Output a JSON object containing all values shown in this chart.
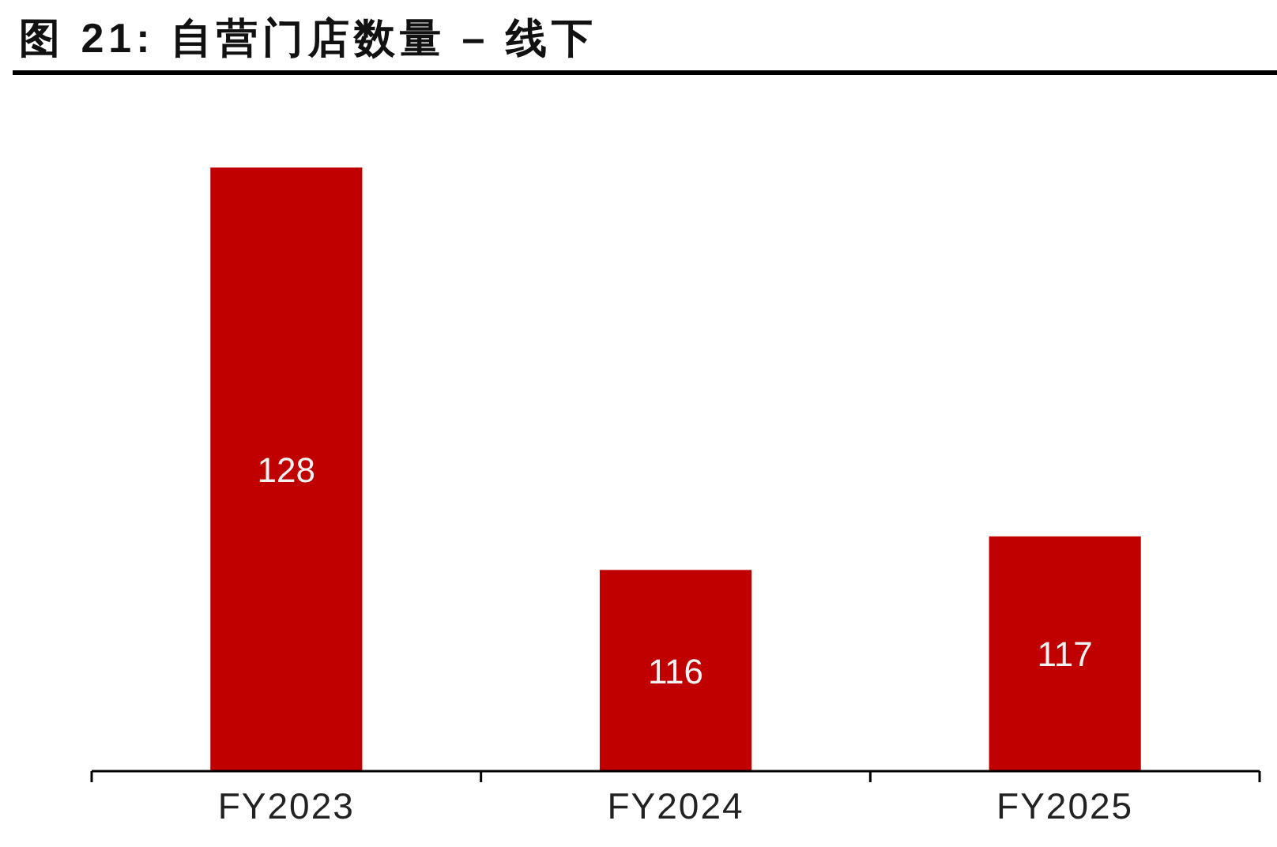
{
  "chart_data": {
    "type": "bar",
    "title": "图 21:  自营门店数量 – 线下",
    "categories": [
      "FY2023",
      "FY2024",
      "FY2025"
    ],
    "values": [
      128,
      116,
      117
    ],
    "color": "#c00000",
    "ylim": [
      110,
      128
    ],
    "data_labels": true
  }
}
